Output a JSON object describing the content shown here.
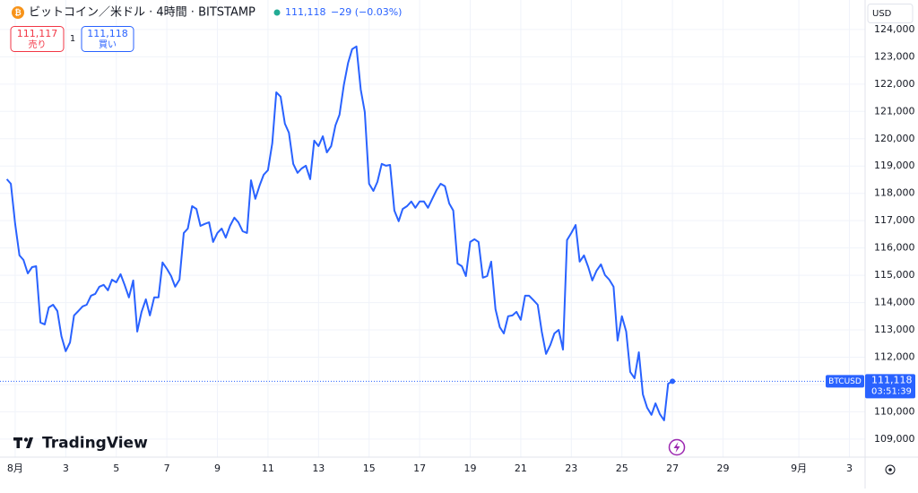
{
  "ui": {
    "symbol_title": "ビットコイン／米ドル · 4時間 · BITSTAMP",
    "last_price": "111,118",
    "change": "−29 (−0.03%)",
    "sell_price": "111,117",
    "sell_label": "売り",
    "spread": "1",
    "buy_price": "111,118",
    "buy_label": "買い",
    "currency": "USD",
    "symbol_tag": "BTCUSD",
    "axis_price": "111,118",
    "countdown": "03:51:39",
    "brand": "TradingView"
  },
  "chart_data": {
    "type": "line",
    "grid": true,
    "xlim": [
      0.4,
      34.62
    ],
    "ylim": [
      108340,
      125080
    ],
    "xticks": [
      {
        "value": 1,
        "label": "8月"
      },
      3,
      5,
      7,
      9,
      11,
      13,
      15,
      17,
      19,
      21,
      23,
      25,
      27,
      29,
      {
        "value": 32,
        "label": "9月"
      },
      {
        "value": 34,
        "label": "3"
      }
    ],
    "yticks": [
      {
        "value": 109000,
        "label": "109,000"
      },
      {
        "value": 110000,
        "label": "110,000"
      },
      {
        "value": 111000,
        "label": "111,000"
      },
      {
        "value": 112000,
        "label": "112,000"
      },
      {
        "value": 113000,
        "label": "113,000"
      },
      {
        "value": 114000,
        "label": "114,000"
      },
      {
        "value": 115000,
        "label": "115,000"
      },
      {
        "value": 116000,
        "label": "116,000"
      },
      {
        "value": 117000,
        "label": "117,000"
      },
      {
        "value": 118000,
        "label": "118,000"
      },
      {
        "value": 119000,
        "label": "119,000"
      },
      {
        "value": 120000,
        "label": "120,000"
      },
      {
        "value": 121000,
        "label": "121,000"
      },
      {
        "value": 122000,
        "label": "122,000"
      },
      {
        "value": 123000,
        "label": "123,000"
      },
      {
        "value": 124000,
        "label": "124,000"
      }
    ],
    "series": [
      {
        "name": "BTCUSD",
        "color": "#2962ff",
        "x": [
          0.67,
          0.83,
          1,
          1.17,
          1.33,
          1.5,
          1.67,
          1.83,
          2,
          2.17,
          2.33,
          2.5,
          2.67,
          2.83,
          3,
          3.17,
          3.33,
          3.5,
          3.67,
          3.83,
          4,
          4.17,
          4.33,
          4.5,
          4.67,
          4.83,
          5,
          5.17,
          5.33,
          5.5,
          5.67,
          5.83,
          6,
          6.17,
          6.33,
          6.5,
          6.67,
          6.83,
          7,
          7.17,
          7.33,
          7.5,
          7.67,
          7.83,
          8,
          8.17,
          8.33,
          8.5,
          8.67,
          8.83,
          9,
          9.17,
          9.33,
          9.5,
          9.67,
          9.83,
          10,
          10.17,
          10.33,
          10.5,
          10.67,
          10.83,
          11,
          11.17,
          11.33,
          11.5,
          11.67,
          11.83,
          12,
          12.17,
          12.33,
          12.5,
          12.67,
          12.83,
          13,
          13.17,
          13.33,
          13.5,
          13.67,
          13.83,
          14,
          14.17,
          14.33,
          14.5,
          14.67,
          14.83,
          15,
          15.17,
          15.33,
          15.5,
          15.67,
          15.83,
          16,
          16.17,
          16.33,
          16.5,
          16.67,
          16.83,
          17,
          17.17,
          17.33,
          17.5,
          17.67,
          17.83,
          18,
          18.17,
          18.33,
          18.5,
          18.67,
          18.83,
          19,
          19.17,
          19.33,
          19.5,
          19.67,
          19.83,
          20,
          20.17,
          20.33,
          20.5,
          20.67,
          20.83,
          21,
          21.17,
          21.33,
          21.5,
          21.67,
          21.83,
          22,
          22.17,
          22.33,
          22.5,
          22.67,
          22.83,
          23,
          23.17,
          23.33,
          23.5,
          23.67,
          23.83,
          24,
          24.17,
          24.33,
          24.5,
          24.67,
          24.83,
          25,
          25.17,
          25.33,
          25.5,
          25.67,
          25.83,
          26,
          26.17,
          26.33,
          26.5,
          26.67,
          26.83,
          27
        ],
        "values": [
          118520,
          118350,
          116880,
          115730,
          115560,
          115070,
          115300,
          115330,
          113270,
          113200,
          113820,
          113920,
          113690,
          112770,
          112220,
          112540,
          113530,
          113690,
          113860,
          113920,
          114250,
          114320,
          114580,
          114650,
          114450,
          114840,
          114740,
          115040,
          114650,
          114190,
          114810,
          112940,
          113660,
          114120,
          113530,
          114190,
          114190,
          115470,
          115240,
          114970,
          114580,
          114840,
          116550,
          116710,
          117530,
          117430,
          116810,
          116880,
          116940,
          116220,
          116550,
          116710,
          116380,
          116810,
          117110,
          116940,
          116610,
          116550,
          118480,
          117800,
          118290,
          118680,
          118850,
          119830,
          121700,
          121540,
          120550,
          120220,
          119080,
          118750,
          118910,
          119010,
          118520,
          119930,
          119730,
          120090,
          119500,
          119730,
          120490,
          120880,
          121960,
          122780,
          123280,
          123380,
          121800,
          120980,
          118350,
          118090,
          118420,
          119080,
          119010,
          119040,
          117370,
          116980,
          117430,
          117530,
          117700,
          117470,
          117700,
          117700,
          117470,
          117800,
          118120,
          118350,
          118260,
          117630,
          117370,
          115430,
          115330,
          114970,
          116220,
          116320,
          116220,
          114910,
          114970,
          115500,
          113760,
          113100,
          112870,
          113500,
          113530,
          113660,
          113370,
          114250,
          114250,
          114090,
          113920,
          112940,
          112120,
          112450,
          112870,
          113000,
          112280,
          116290,
          116550,
          116840,
          115500,
          115730,
          115300,
          114810,
          115170,
          115400,
          115010,
          114840,
          114580,
          112610,
          113500,
          112940,
          111460,
          111230,
          112180,
          110640,
          110150,
          109890,
          110310,
          109920,
          109690,
          111030,
          111118
        ]
      }
    ]
  }
}
